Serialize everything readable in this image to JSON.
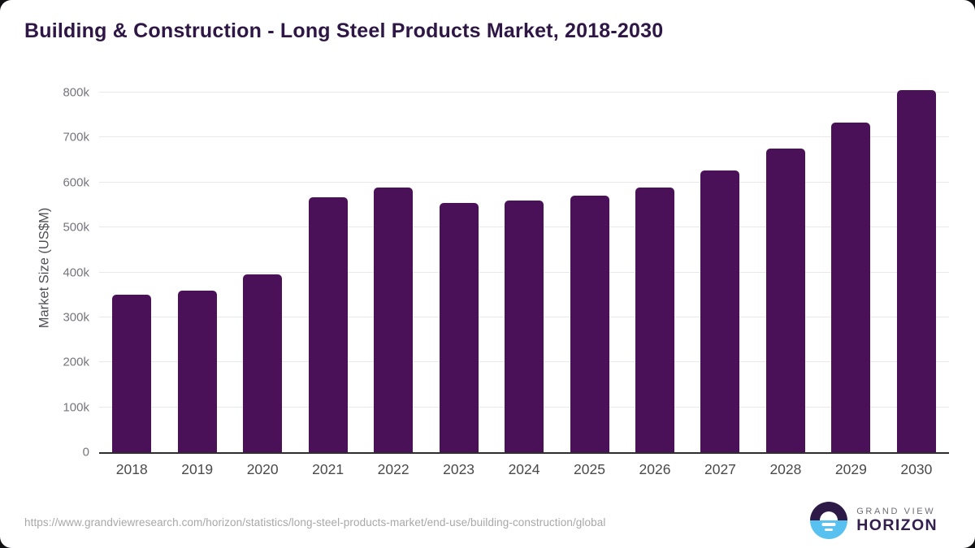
{
  "page": {
    "title": "Building & Construction - Long Steel Products Market, 2018-2030"
  },
  "chart_data": {
    "type": "bar",
    "title": "Building & Construction - Long Steel Products Market, 2018-2030",
    "xlabel": "",
    "ylabel": "Market Size (US$M)",
    "unit_note": "values in thousands (k) of US$M as read from axis",
    "categories": [
      "2018",
      "2019",
      "2020",
      "2021",
      "2022",
      "2023",
      "2024",
      "2025",
      "2026",
      "2027",
      "2028",
      "2029",
      "2030"
    ],
    "values": [
      350,
      360,
      395,
      567,
      589,
      554,
      560,
      570,
      588,
      627,
      676,
      734,
      805
    ],
    "ylim": [
      0,
      800
    ],
    "yticks": [
      {
        "value": 0,
        "label": "0"
      },
      {
        "value": 100,
        "label": "100k"
      },
      {
        "value": 200,
        "label": "200k"
      },
      {
        "value": 300,
        "label": "300k"
      },
      {
        "value": 400,
        "label": "400k"
      },
      {
        "value": 500,
        "label": "500k"
      },
      {
        "value": 600,
        "label": "600k"
      },
      {
        "value": 700,
        "label": "700k"
      },
      {
        "value": 800,
        "label": "800k"
      }
    ],
    "grid": true,
    "legend": "none",
    "bar_color": "#4a1158"
  },
  "colors": {
    "title": "#2e1745",
    "bar": "#4a1158",
    "gridline": "#e9e9ec",
    "axis_line": "#2e2e2e",
    "y_tick_text": "#75757d",
    "x_tick_text": "#4a4a4a",
    "url_text": "#a8a8a8",
    "logo_dark": "#2e1a47",
    "logo_blue": "#58c1ef"
  },
  "footer": {
    "source_url": "https://www.grandviewresearch.com/horizon/statistics/long-steel-products-market/end-use/building-construction/global",
    "logo": {
      "line1": "GRAND VIEW",
      "line2": "HORIZON"
    }
  }
}
